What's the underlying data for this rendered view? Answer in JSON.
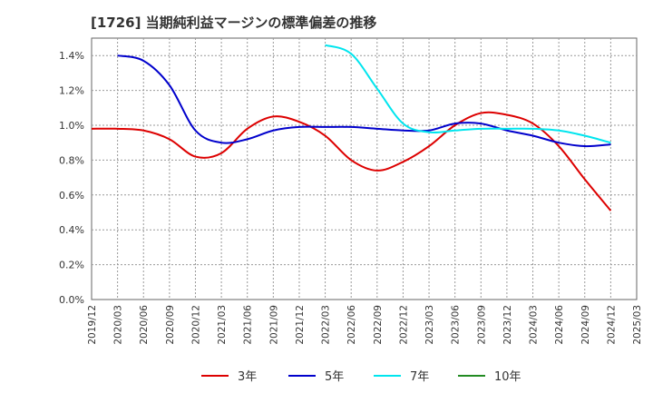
{
  "chart_data": {
    "type": "line",
    "title": "[1726]  当期純利益マージンの標準偏差の推移",
    "xlabel": "",
    "ylabel": "",
    "ylim": [
      0,
      1.5
    ],
    "y_ticks": [
      0,
      0.2,
      0.4,
      0.6,
      0.8,
      1.0,
      1.2,
      1.4
    ],
    "y_tick_labels": [
      "0.0%",
      "0.2%",
      "0.4%",
      "0.6%",
      "0.8%",
      "1.0%",
      "1.2%",
      "1.4%"
    ],
    "x_tick_labels": [
      "2019/12",
      "2020/03",
      "2020/06",
      "2020/09",
      "2020/12",
      "2021/03",
      "2021/06",
      "2021/09",
      "2021/12",
      "2022/03",
      "2022/06",
      "2022/09",
      "2022/12",
      "2023/03",
      "2023/06",
      "2023/09",
      "2023/12",
      "2024/03",
      "2024/06",
      "2024/09",
      "2024/12",
      "2025/03"
    ],
    "grid": true,
    "legend_position": "bottom",
    "series": [
      {
        "name": "3年",
        "color": "#dd0000",
        "x": [
          "2019/12",
          "2020/03",
          "2020/06",
          "2020/09",
          "2020/12",
          "2021/03",
          "2021/06",
          "2021/09",
          "2021/12",
          "2022/03",
          "2022/06",
          "2022/09",
          "2022/12",
          "2023/03",
          "2023/06",
          "2023/09",
          "2023/12",
          "2024/03",
          "2024/06",
          "2024/09",
          "2024/12"
        ],
        "values": [
          0.98,
          0.98,
          0.97,
          0.92,
          0.82,
          0.84,
          0.98,
          1.05,
          1.02,
          0.94,
          0.8,
          0.74,
          0.79,
          0.88,
          1.0,
          1.07,
          1.06,
          1.01,
          0.88,
          0.69,
          0.51
        ]
      },
      {
        "name": "5年",
        "color": "#0000cc",
        "x": [
          "2020/03",
          "2020/06",
          "2020/09",
          "2020/12",
          "2021/03",
          "2021/06",
          "2021/09",
          "2021/12",
          "2022/03",
          "2022/06",
          "2022/09",
          "2022/12",
          "2023/03",
          "2023/06",
          "2023/09",
          "2023/12",
          "2024/03",
          "2024/06",
          "2024/09",
          "2024/12"
        ],
        "values": [
          1.4,
          1.37,
          1.23,
          0.97,
          0.9,
          0.92,
          0.97,
          0.99,
          0.99,
          0.99,
          0.98,
          0.97,
          0.97,
          1.01,
          1.01,
          0.97,
          0.94,
          0.9,
          0.88,
          0.89
        ]
      },
      {
        "name": "7年",
        "color": "#00e5ee",
        "x": [
          "2022/03",
          "2022/06",
          "2022/09",
          "2022/12",
          "2023/03",
          "2023/06",
          "2023/09",
          "2023/12",
          "2024/03",
          "2024/06",
          "2024/09",
          "2024/12"
        ],
        "values": [
          1.46,
          1.41,
          1.21,
          1.01,
          0.96,
          0.97,
          0.98,
          0.98,
          0.98,
          0.97,
          0.94,
          0.9
        ]
      },
      {
        "name": "10年",
        "color": "#228b22",
        "x": [],
        "values": []
      }
    ]
  }
}
